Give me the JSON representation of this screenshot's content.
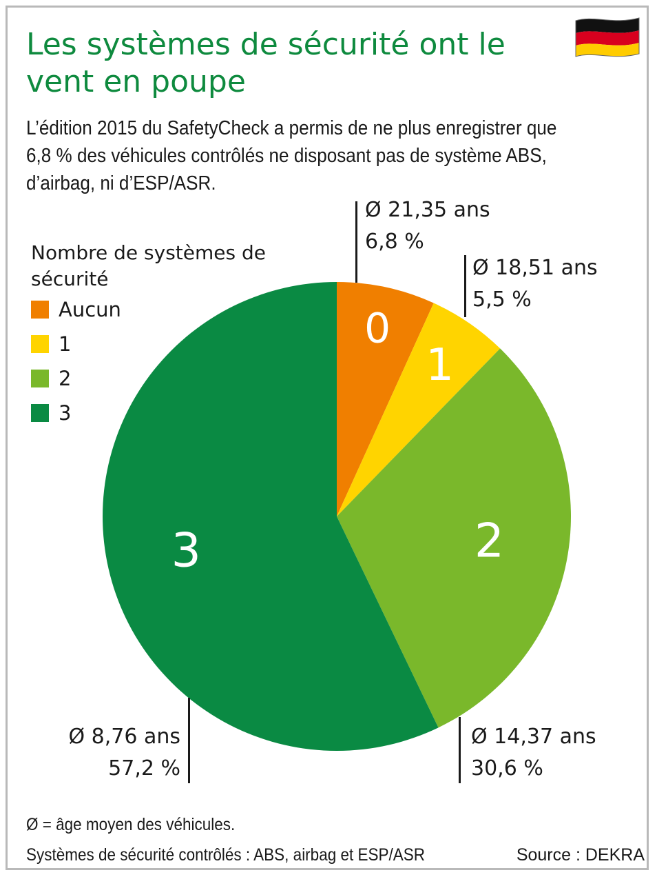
{
  "title": "Les systèmes de sécurité ont le vent en poupe",
  "subtitle": "L’édition 2015 du SafetyCheck a permis de ne plus enregistrer que 6,8 % des véhicules contrôlés ne disposant pas de système ABS, d’airbag, ni d’ESP/ASR.",
  "flag_icon": "germany-flag-icon",
  "legend": {
    "title": "Nombre de systèmes de sécurité",
    "items": [
      {
        "label": "Aucun",
        "color": "#f07f00"
      },
      {
        "label": "1",
        "color": "#ffd400"
      },
      {
        "label": "2",
        "color": "#7ab82b"
      },
      {
        "label": "3",
        "color": "#0a8a43"
      }
    ]
  },
  "chart_data": {
    "type": "pie",
    "categories": [
      "0",
      "1",
      "2",
      "3"
    ],
    "values": [
      6.8,
      5.5,
      30.6,
      57.2
    ],
    "colors": [
      "#f07f00",
      "#ffd400",
      "#7ab82b",
      "#0a8a43"
    ],
    "slice_labels": [
      "0",
      "1",
      "2",
      "3"
    ],
    "annotations": [
      {
        "age": "Ø 21,35 ans",
        "share": "6,8 %"
      },
      {
        "age": "Ø 18,51 ans",
        "share": "5,5 %"
      },
      {
        "age": "Ø 14,37 ans",
        "share": "30,6 %"
      },
      {
        "age": "Ø 8,76 ans",
        "share": "57,2 %"
      }
    ]
  },
  "footer": {
    "note1": "Ø = âge moyen des véhicules.",
    "note2": "Systèmes de sécurité contrôlés : ABS, airbag et ESP/ASR",
    "source": "Source : DEKRA"
  }
}
